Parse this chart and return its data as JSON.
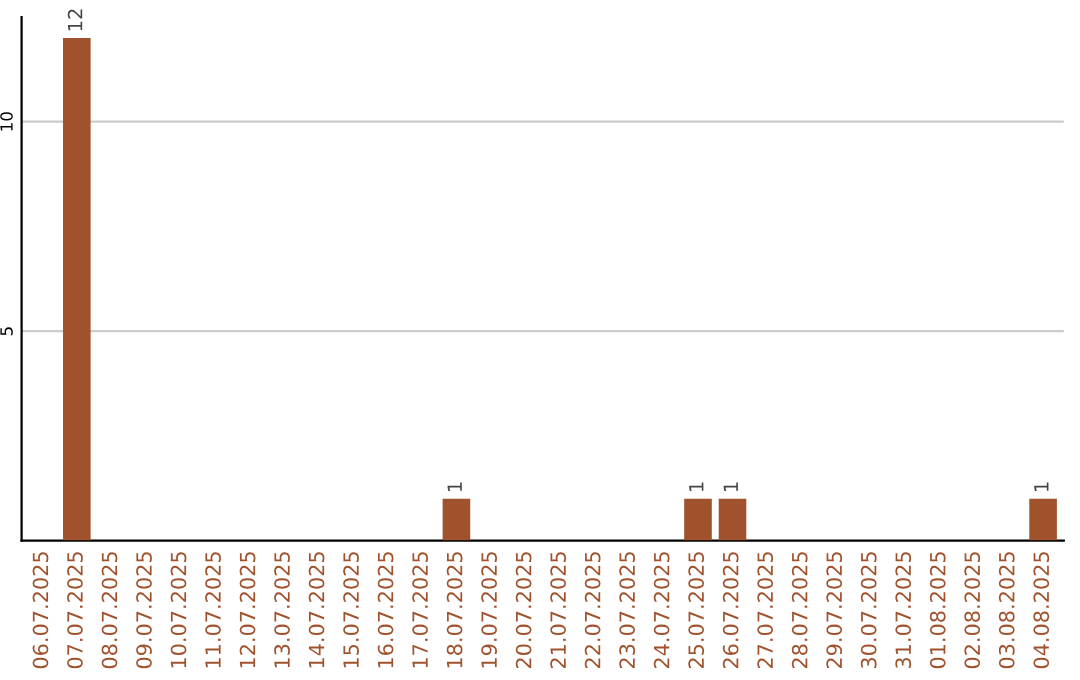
{
  "chart_data": {
    "type": "bar",
    "categories": [
      "06.07.2025",
      "07.07.2025",
      "08.07.2025",
      "09.07.2025",
      "10.07.2025",
      "11.07.2025",
      "12.07.2025",
      "13.07.2025",
      "14.07.2025",
      "15.07.2025",
      "16.07.2025",
      "17.07.2025",
      "18.07.2025",
      "19.07.2025",
      "20.07.2025",
      "21.07.2025",
      "22.07.2025",
      "23.07.2025",
      "24.07.2025",
      "25.07.2025",
      "26.07.2025",
      "27.07.2025",
      "28.07.2025",
      "29.07.2025",
      "30.07.2025",
      "31.07.2025",
      "01.08.2025",
      "02.08.2025",
      "03.08.2025",
      "04.08.2025"
    ],
    "values": [
      0,
      12,
      0,
      0,
      0,
      0,
      0,
      0,
      0,
      0,
      0,
      0,
      1,
      0,
      0,
      0,
      0,
      0,
      0,
      1,
      1,
      0,
      0,
      0,
      0,
      0,
      0,
      0,
      0,
      1
    ],
    "value_labels": [
      null,
      "12",
      null,
      null,
      null,
      null,
      null,
      null,
      null,
      null,
      null,
      null,
      "1",
      null,
      null,
      null,
      null,
      null,
      null,
      "1",
      "1",
      null,
      null,
      null,
      null,
      null,
      null,
      null,
      null,
      "1"
    ],
    "color": "#a0522d",
    "ylim": [
      0,
      12.5
    ],
    "yticks": [
      5,
      10
    ],
    "grid": "y",
    "legend": false
  }
}
